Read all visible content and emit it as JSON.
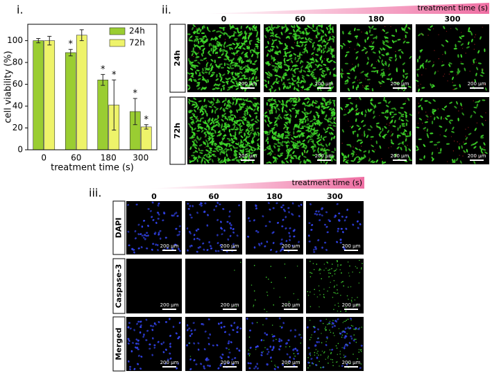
{
  "chart_data": {
    "type": "bar",
    "panel_label": "i.",
    "categories": [
      "0",
      "60",
      "180",
      "300"
    ],
    "x_label": "treatment time (s)",
    "y_label": "cell viability (%)",
    "series": [
      {
        "name": "24h",
        "color": "#9acd32",
        "values": [
          100,
          89,
          64,
          35
        ],
        "errors": [
          2,
          3,
          5,
          12
        ]
      },
      {
        "name": "72h",
        "color": "#eef36a",
        "values": [
          100,
          105,
          41,
          21
        ],
        "errors": [
          4,
          5,
          23,
          2
        ]
      }
    ],
    "annotations": [
      {
        "text": "*",
        "series": "24h",
        "category": "60"
      },
      {
        "text": "*",
        "series": "24h",
        "category": "180"
      },
      {
        "text": "*",
        "series": "72h",
        "category": "180"
      },
      {
        "text": "*",
        "series": "24h",
        "category": "300"
      },
      {
        "text": "*",
        "series": "72h",
        "category": "300"
      }
    ],
    "ylim": [
      0,
      115
    ],
    "yticks": [
      0,
      20,
      40,
      60,
      80,
      100
    ],
    "legend": "upper right"
  },
  "panel_ii": {
    "label": "ii.",
    "axis_title": "treatment time (s)",
    "columns": [
      "0",
      "60",
      "180",
      "300"
    ],
    "rows": [
      "24h",
      "72h"
    ]
  },
  "panel_iii": {
    "label": "iii.",
    "axis_title": "treatment time (s)",
    "columns": [
      "0",
      "60",
      "180",
      "300"
    ],
    "rows": [
      "DAPI",
      "Caspase-3",
      "Merged"
    ]
  },
  "scale_bar": "200 μm"
}
